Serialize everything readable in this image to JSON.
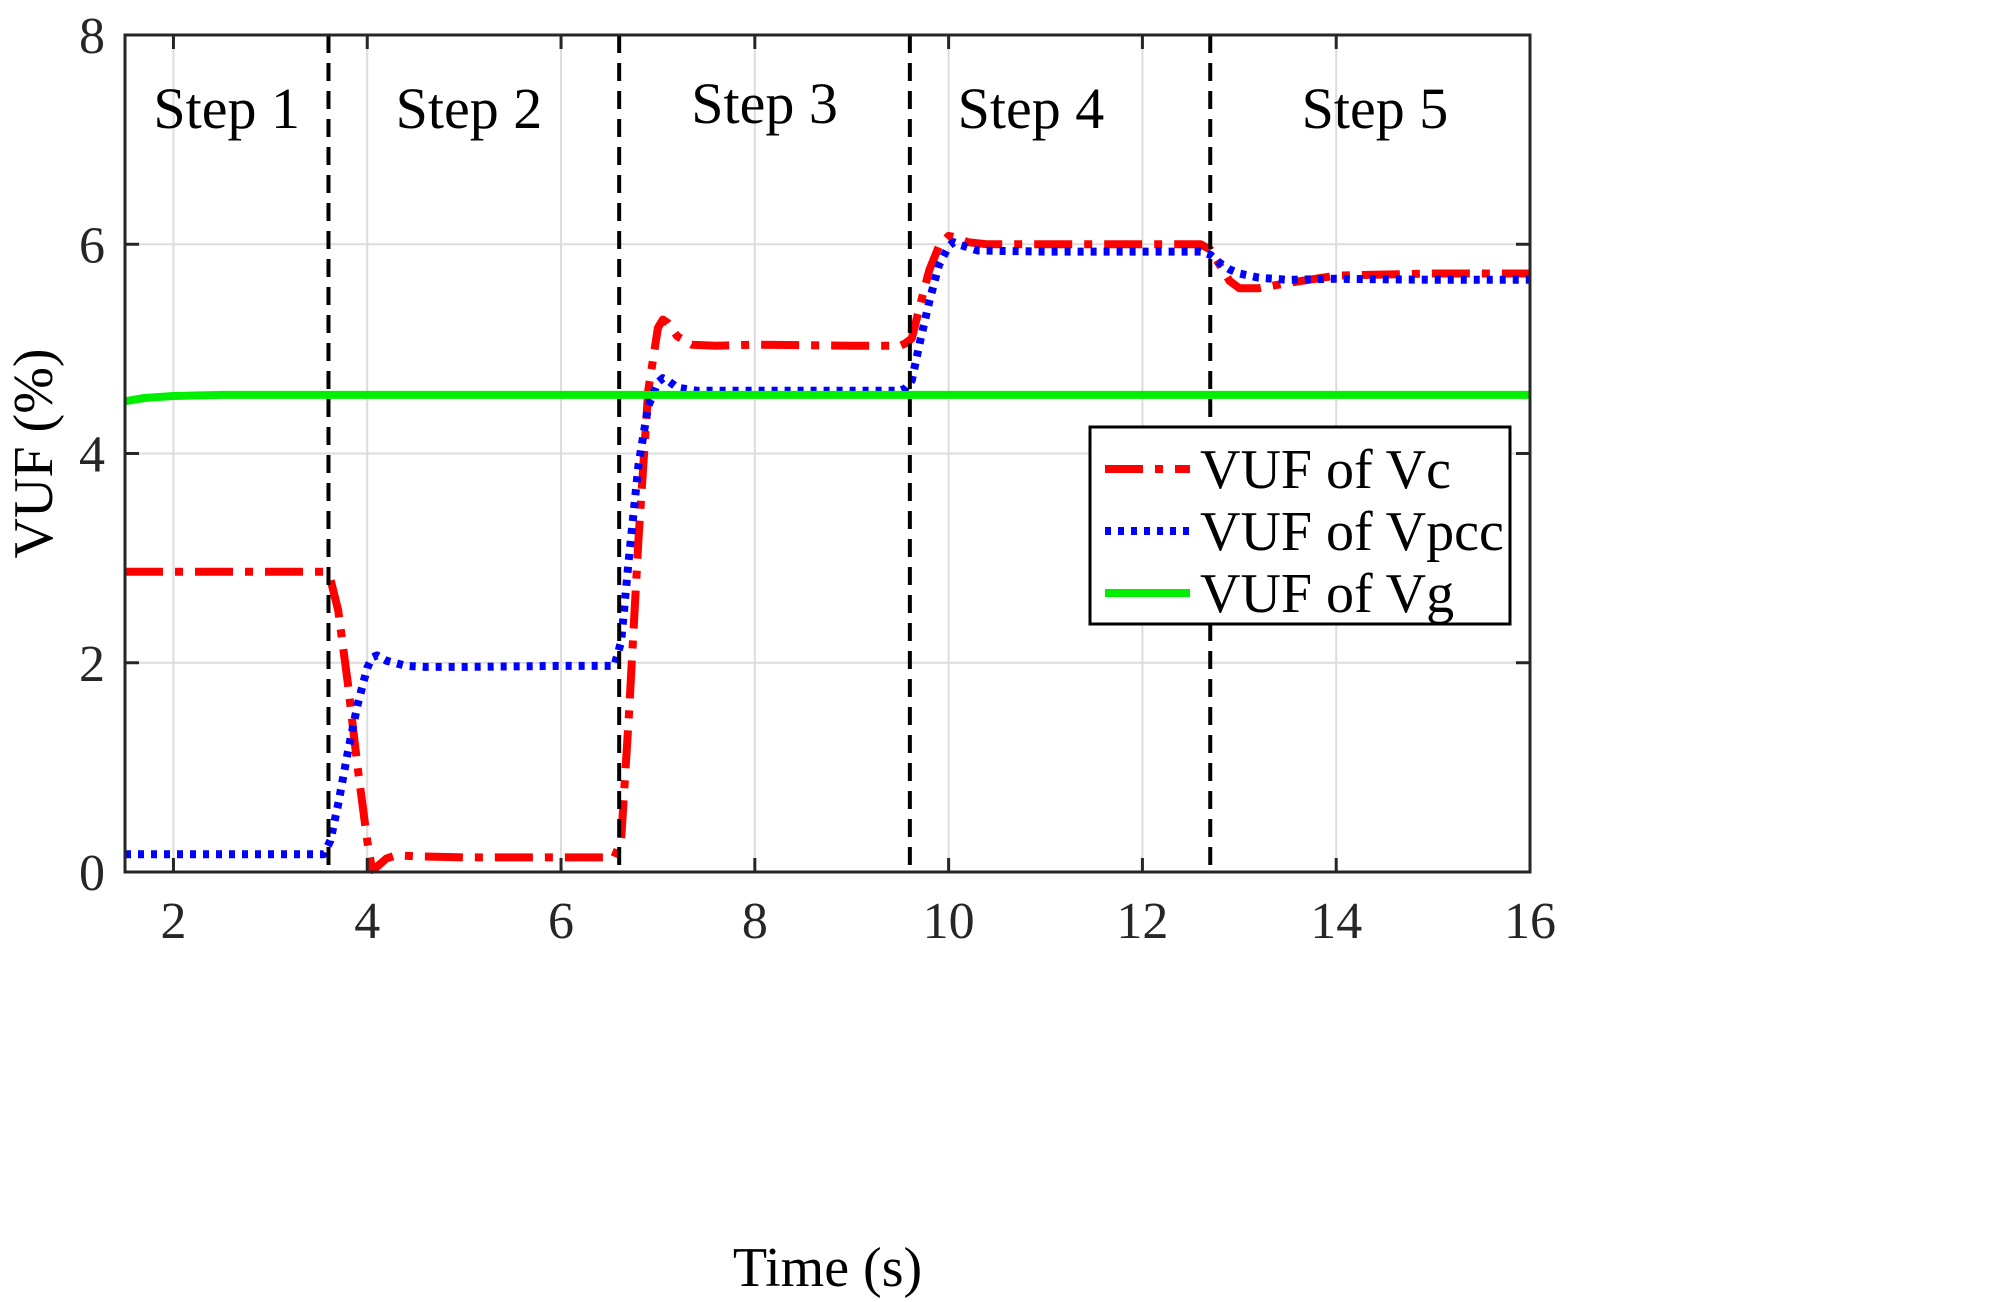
{
  "chart_data": {
    "type": "line",
    "title": "",
    "xlabel": "Time (s)",
    "ylabel": "VUF (%)",
    "xlim": [
      1.5,
      16
    ],
    "ylim": [
      0,
      8
    ],
    "xticks": [
      2,
      4,
      6,
      8,
      10,
      12,
      14,
      16
    ],
    "yticks": [
      0,
      2,
      4,
      6,
      8
    ],
    "grid": true,
    "legend_position": "right",
    "step_boundaries": [
      3.6,
      6.6,
      9.6,
      12.7
    ],
    "step_labels": [
      {
        "label": "Step 1",
        "x": 2.55,
        "y": 7.3
      },
      {
        "label": "Step 2",
        "x": 5.05,
        "y": 7.3
      },
      {
        "label": "Step 3",
        "x": 8.1,
        "y": 7.35
      },
      {
        "label": "Step 4",
        "x": 10.85,
        "y": 7.3
      },
      {
        "label": "Step 5",
        "x": 14.4,
        "y": 7.3
      }
    ],
    "series": [
      {
        "name": "VUF of Vc",
        "color": "#ff0000",
        "style": "dashdot",
        "x": [
          1.5,
          3.55,
          3.62,
          3.7,
          3.8,
          3.9,
          4.0,
          4.05,
          4.1,
          4.2,
          4.3,
          4.5,
          5.0,
          6.0,
          6.55,
          6.62,
          6.7,
          6.8,
          6.9,
          7.0,
          7.05,
          7.1,
          7.2,
          7.35,
          7.6,
          8.0,
          9.0,
          9.5,
          9.55,
          9.62,
          9.7,
          9.8,
          9.9,
          10.0,
          10.05,
          10.2,
          10.4,
          10.8,
          12.0,
          12.6,
          12.7,
          12.8,
          12.9,
          13.0,
          13.2,
          13.5,
          14.0,
          15.0,
          16.0
        ],
        "values": [
          2.87,
          2.87,
          2.8,
          2.5,
          1.8,
          1.0,
          0.3,
          0.02,
          0.05,
          0.13,
          0.16,
          0.15,
          0.14,
          0.14,
          0.14,
          0.3,
          1.5,
          3.2,
          4.6,
          5.2,
          5.28,
          5.25,
          5.12,
          5.04,
          5.03,
          5.04,
          5.03,
          5.03,
          5.05,
          5.1,
          5.4,
          5.75,
          5.98,
          6.08,
          6.07,
          6.02,
          6.0,
          6.0,
          6.0,
          6.0,
          5.95,
          5.8,
          5.65,
          5.58,
          5.58,
          5.63,
          5.7,
          5.72,
          5.72
        ]
      },
      {
        "name": "VUF of Vpcc",
        "color": "#0000ff",
        "style": "dotted",
        "x": [
          1.5,
          3.55,
          3.62,
          3.7,
          3.8,
          3.9,
          4.0,
          4.05,
          4.1,
          4.2,
          4.4,
          4.6,
          5.0,
          6.0,
          6.55,
          6.62,
          6.7,
          6.8,
          6.9,
          7.0,
          7.05,
          7.1,
          7.2,
          7.4,
          8.0,
          9.5,
          9.55,
          9.62,
          9.7,
          9.8,
          9.9,
          10.0,
          10.05,
          10.1,
          10.3,
          11.0,
          12.6,
          12.7,
          12.8,
          12.9,
          13.0,
          13.2,
          13.5,
          14.0,
          15.0,
          16.0
        ],
        "values": [
          0.17,
          0.17,
          0.3,
          0.65,
          1.15,
          1.6,
          1.95,
          2.05,
          2.07,
          2.02,
          1.97,
          1.96,
          1.96,
          1.97,
          1.97,
          2.2,
          3.0,
          3.9,
          4.45,
          4.68,
          4.72,
          4.7,
          4.63,
          4.6,
          4.6,
          4.6,
          4.62,
          4.7,
          5.05,
          5.45,
          5.8,
          5.98,
          6.02,
          6.0,
          5.94,
          5.93,
          5.93,
          5.9,
          5.82,
          5.76,
          5.72,
          5.68,
          5.66,
          5.67,
          5.66,
          5.66
        ]
      },
      {
        "name": "VUF of Vg",
        "color": "#00ee00",
        "style": "solid",
        "x": [
          1.5,
          1.7,
          2.0,
          2.5,
          3.0,
          16.0
        ],
        "values": [
          4.5,
          4.53,
          4.55,
          4.56,
          4.56,
          4.56
        ]
      }
    ]
  }
}
